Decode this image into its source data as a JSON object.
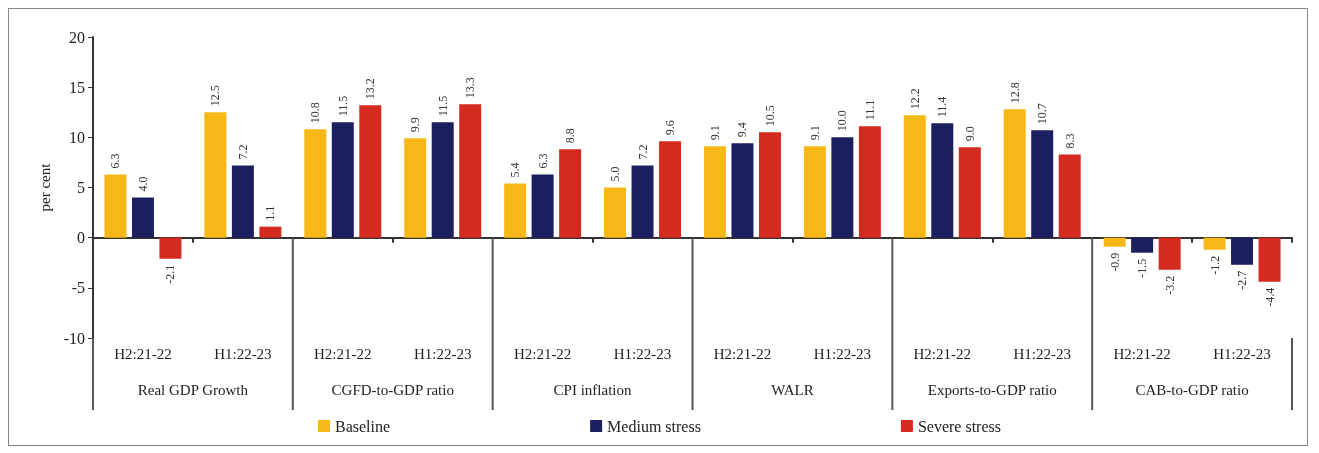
{
  "chart_data": {
    "type": "bar",
    "ylabel": "per cent",
    "categories": [
      "H2:21-22",
      "H1:22-23",
      "H2:21-22",
      "H1:22-23",
      "H2:21-22",
      "H1:22-23",
      "H2:21-22",
      "H1:22-23",
      "H2:21-22",
      "H1:22-23",
      "H2:21-22",
      "H1:22-23"
    ],
    "annotations": [
      "Real GDP Growth",
      "CGFD-to-GDP ratio",
      "CPI inflation",
      "WALR",
      "Exports-to-GDP ratio",
      "CAB-to-GDP ratio"
    ],
    "series": [
      {
        "name": "Baseline",
        "color": "#f6b817",
        "values": [
          6.3,
          12.5,
          10.8,
          9.9,
          5.4,
          5.0,
          9.1,
          9.1,
          12.2,
          12.8,
          -0.9,
          -1.2
        ],
        "value_labels": [
          "6.3",
          "12.5",
          "10.8",
          "9.9",
          "5.4",
          "5.0",
          "9.1",
          "9.1",
          "12.2",
          "12.8",
          "-0.9",
          "-1.2"
        ]
      },
      {
        "name": "Medium stress",
        "color": "#1b1e5f",
        "values": [
          4.0,
          7.2,
          11.5,
          11.5,
          6.3,
          7.2,
          9.4,
          10.0,
          11.4,
          10.7,
          -1.5,
          -2.7
        ],
        "value_labels": [
          "4.0",
          "7.2",
          "11.5",
          "11.5",
          "6.3",
          "7.2",
          "9.4",
          "10.0",
          "11.4",
          "10.7",
          "-1.5",
          "-2.7"
        ]
      },
      {
        "name": "Severe stress",
        "color": "#d42a20",
        "values": [
          -2.1,
          1.1,
          13.2,
          13.3,
          8.8,
          9.6,
          10.5,
          11.1,
          9.0,
          8.3,
          -3.2,
          -4.4
        ],
        "value_labels": [
          "-2.1",
          "1.1",
          "13.2",
          "13.3",
          "8.8",
          "9.6",
          "10.5",
          "11.1",
          "9.0",
          "8.3",
          "-3.2",
          "-4.4"
        ]
      }
    ],
    "ylim": [
      -10,
      20
    ],
    "yticks": [
      -10,
      -5,
      0,
      5,
      10,
      15,
      20
    ],
    "legend": "bottom"
  }
}
